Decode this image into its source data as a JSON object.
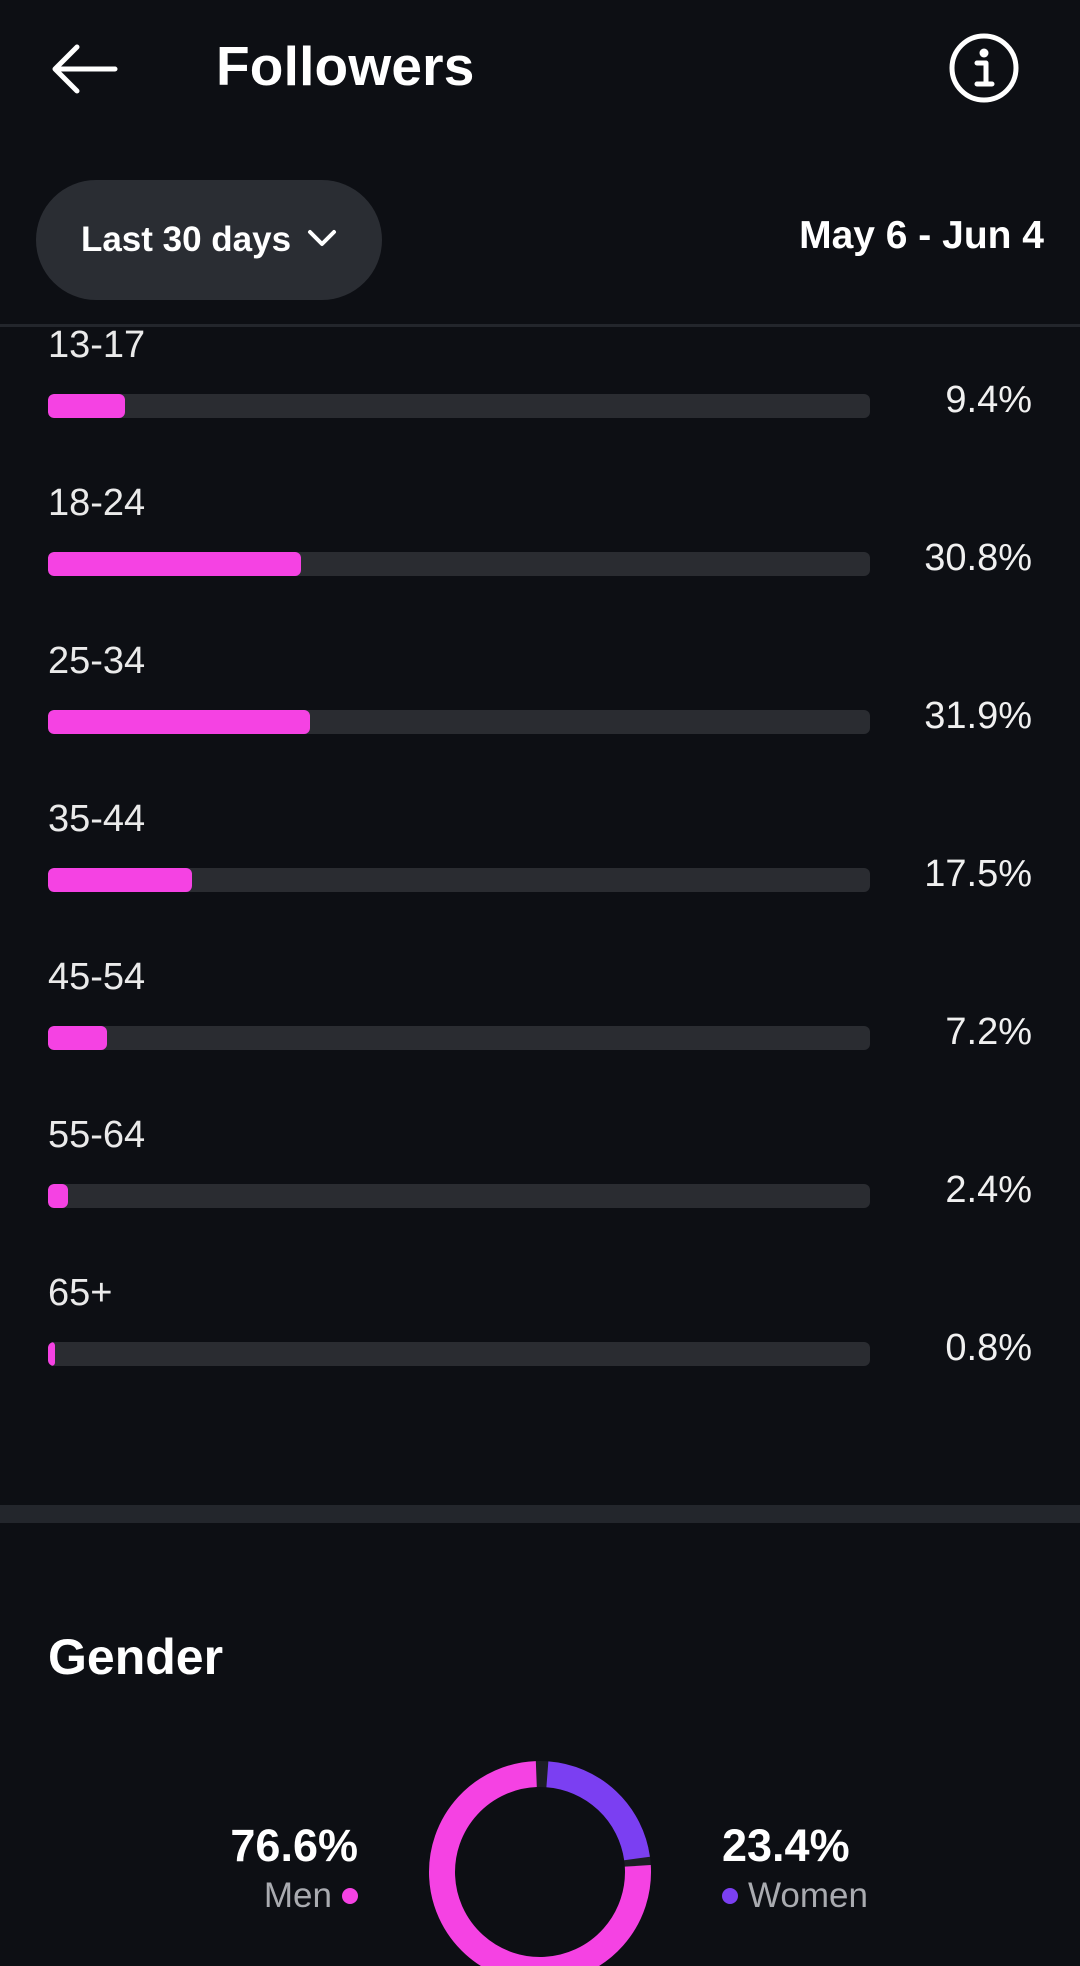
{
  "header": {
    "title": "Followers",
    "back_icon": "arrow-left-icon",
    "info_icon": "info-circle-icon"
  },
  "filter": {
    "range_label": "Last 30 days",
    "dropdown_icon": "chevron-down-icon",
    "date_range": "May 6 - Jun 4"
  },
  "age": {
    "rows": [
      {
        "label": "13-17",
        "value": "9.4%",
        "fraction": 0.094
      },
      {
        "label": "18-24",
        "value": "30.8%",
        "fraction": 0.308
      },
      {
        "label": "25-34",
        "value": "31.9%",
        "fraction": 0.319
      },
      {
        "label": "35-44",
        "value": "17.5%",
        "fraction": 0.175
      },
      {
        "label": "45-54",
        "value": "7.2%",
        "fraction": 0.072
      },
      {
        "label": "55-64",
        "value": "2.4%",
        "fraction": 0.024
      },
      {
        "label": "65+",
        "value": "0.8%",
        "fraction": 0.008
      }
    ]
  },
  "gender": {
    "title": "Gender",
    "men": {
      "value": "76.6%",
      "label": "Men",
      "fraction": 0.766,
      "color": "#f542e3"
    },
    "women": {
      "value": "23.4%",
      "label": "Women",
      "fraction": 0.234,
      "color": "#7b3ff2"
    }
  },
  "colors": {
    "background": "#0d0f14",
    "bar_fill": "#f542e3",
    "bar_track": "#2a2c31",
    "pill": "#2a2d33"
  }
}
